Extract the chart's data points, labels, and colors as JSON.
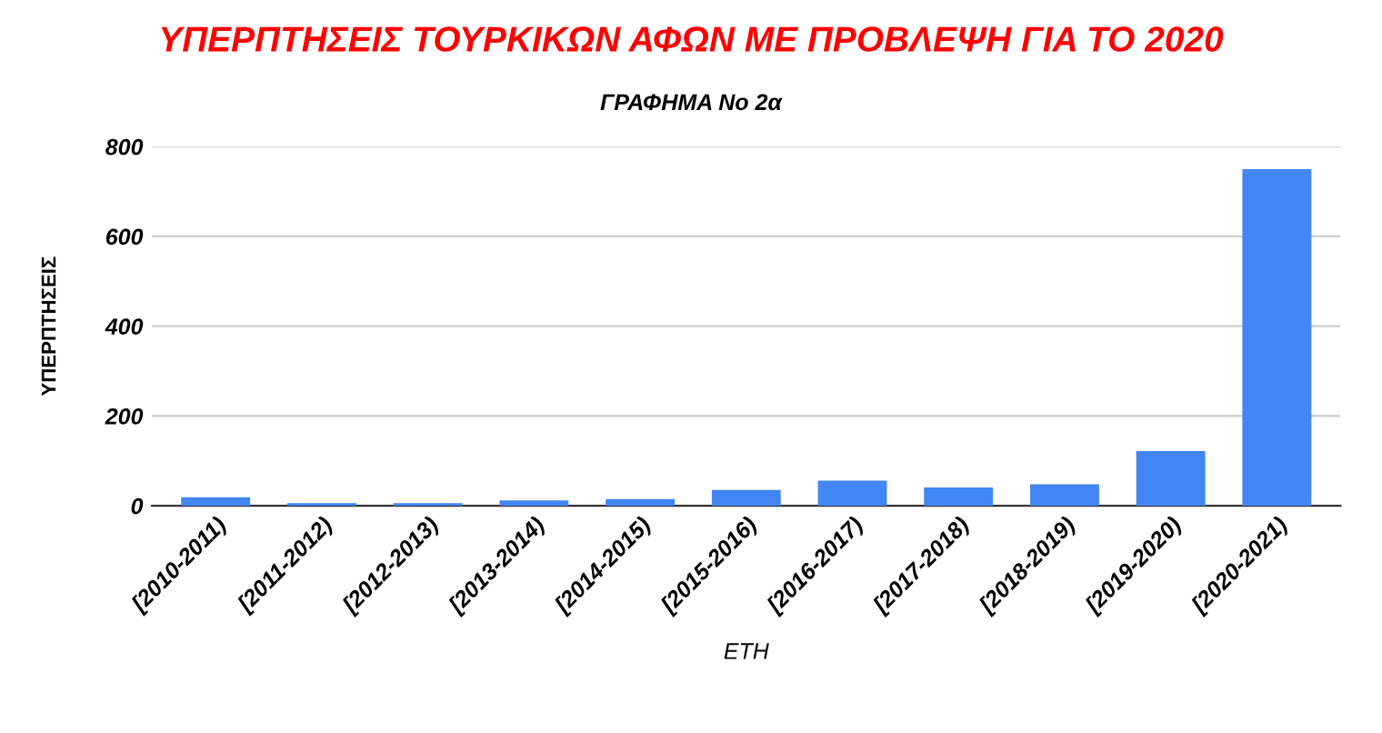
{
  "chart_data": {
    "type": "bar",
    "title": "ΥΠΕΡΠΤΗΣΕΙΣ ΤΟΥΡΚΙΚΩΝ ΑΦΩΝ ΜΕ ΠΡΟΒΛΕΨΗ ΓΙΑ ΤΟ 2020",
    "subtitle": "ΓΡΑΦΗΜΑ Νο 2α",
    "xlabel": "ΕΤΗ",
    "ylabel": "ΥΠΕΡΠΤΗΣΕΙΣ",
    "categories": [
      "[2010-2011)",
      "[2011-2012)",
      "[2012-2013)",
      "[2013-2014)",
      "[2014-2015)",
      "[2015-2016)",
      "[2016-2017)",
      "[2017-2018)",
      "[2018-2019)",
      "[2019-2020)",
      "[2020-2021)"
    ],
    "values": [
      19,
      6,
      6,
      12,
      15,
      35,
      56,
      41,
      48,
      122,
      750
    ],
    "color": "#4285f4",
    "ylim": [
      0,
      800
    ],
    "yticks": [
      0,
      200,
      400,
      600,
      800
    ],
    "grid": "y"
  }
}
